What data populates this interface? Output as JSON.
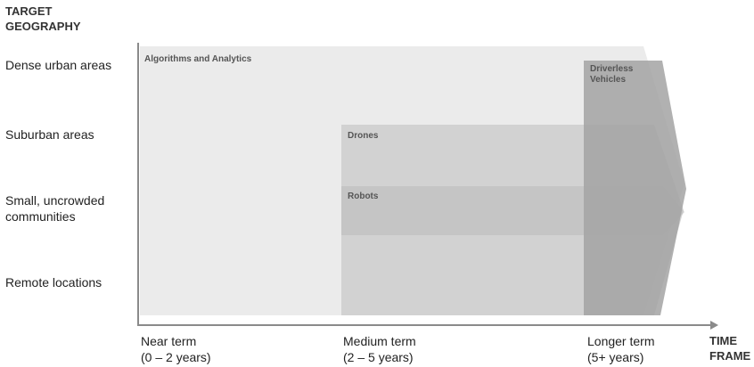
{
  "y_axis": {
    "title_line1": "TARGET",
    "title_line2": "GEOGRAPHY"
  },
  "x_axis": {
    "title_line1": "TIME",
    "title_line2": "FRAME"
  },
  "rows": [
    {
      "label_line1": "Dense urban areas",
      "label_line2": ""
    },
    {
      "label_line1": "Suburban areas",
      "label_line2": ""
    },
    {
      "label_line1": "Small, uncrowded",
      "label_line2": "communities"
    },
    {
      "label_line1": "Remote locations",
      "label_line2": ""
    }
  ],
  "columns": [
    {
      "label_line1": "Near term",
      "label_line2": "(0 – 2 years)"
    },
    {
      "label_line1": "Medium term",
      "label_line2": "(2 – 5 years)"
    },
    {
      "label_line1": "Longer term",
      "label_line2": "(5+ years)"
    }
  ],
  "bands": [
    {
      "label_line1": "Algorithms and Analytics",
      "label_line2": "",
      "color": "#ebebeb"
    },
    {
      "label_line1": "Drones",
      "label_line2": "",
      "color": "#c9c9c9"
    },
    {
      "label_line1": "Robots",
      "label_line2": "",
      "color": "#bcbcbc"
    },
    {
      "label_line1": "Driverless",
      "label_line2": "Vehicles",
      "color": "#a9a9a9"
    }
  ]
}
